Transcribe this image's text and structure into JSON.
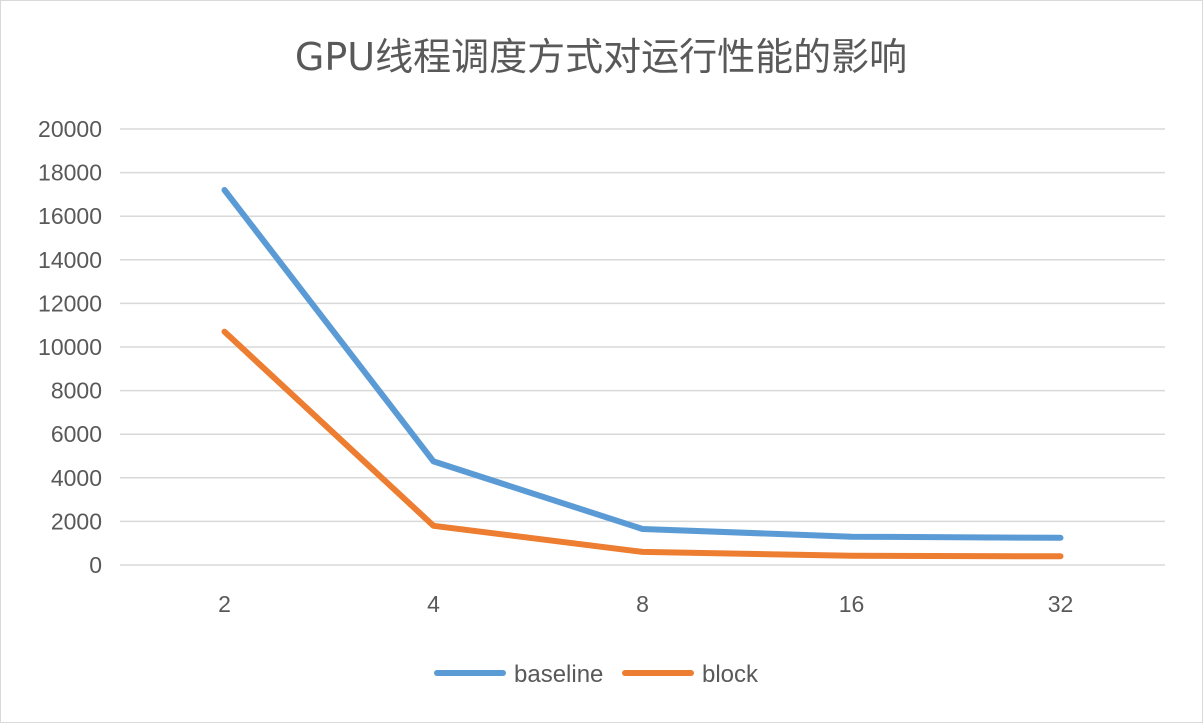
{
  "chart_data": {
    "type": "line",
    "title": "GPU线程调度方式对运行性能的影响",
    "categories": [
      "2",
      "4",
      "8",
      "16",
      "32"
    ],
    "series": [
      {
        "name": "baseline",
        "color": "#5B9BD5",
        "values": [
          17200,
          4750,
          1650,
          1300,
          1250
        ]
      },
      {
        "name": "block",
        "color": "#ED7D31",
        "values": [
          10700,
          1800,
          600,
          420,
          400
        ]
      }
    ],
    "y_ticks": [
      "0",
      "2000",
      "4000",
      "6000",
      "8000",
      "10000",
      "12000",
      "14000",
      "16000",
      "18000",
      "20000"
    ],
    "ylim": [
      0,
      20000
    ],
    "grid": true,
    "legend_position": "bottom"
  }
}
